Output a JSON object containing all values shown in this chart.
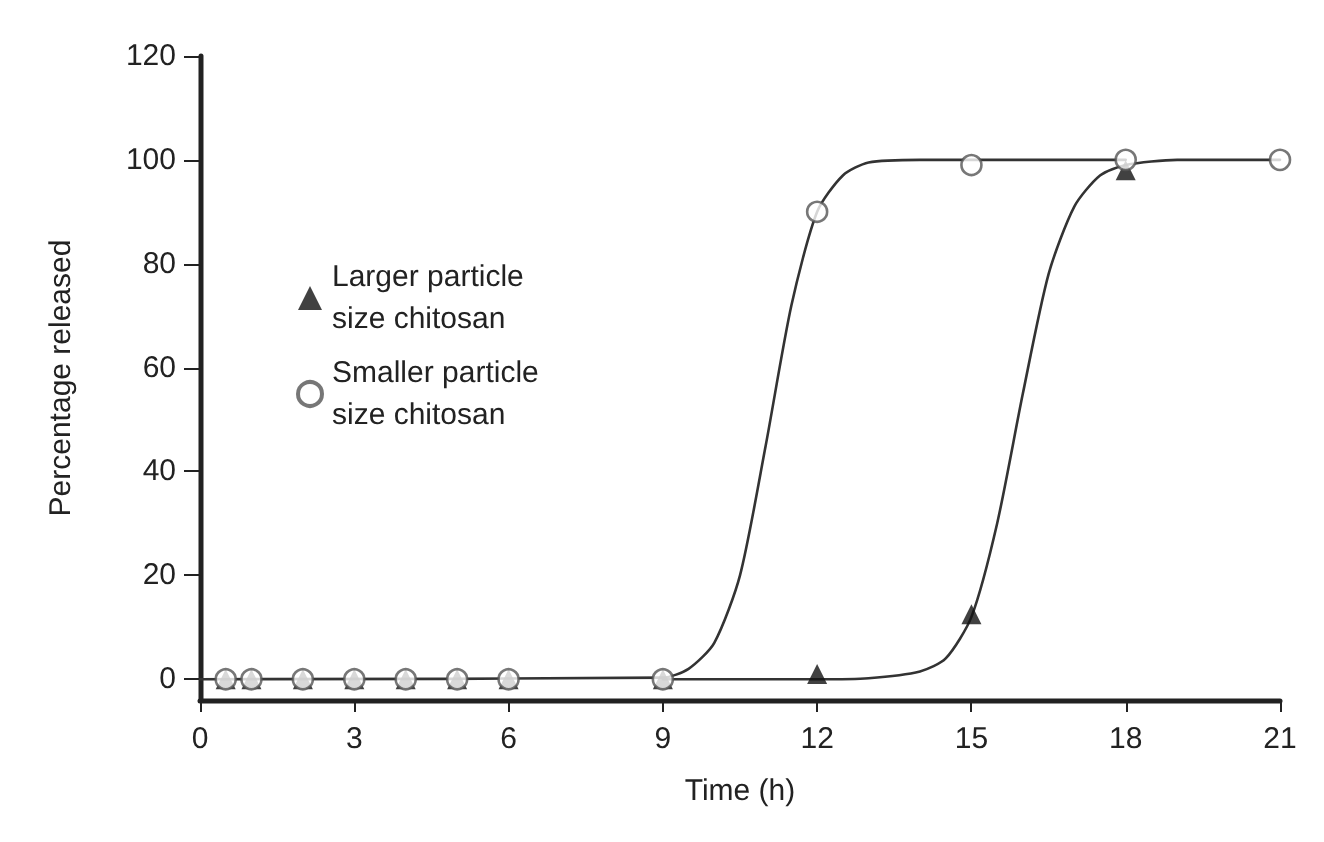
{
  "chart_data": {
    "type": "scatter",
    "xlabel": "Time (h)",
    "ylabel": "Percentage released",
    "xlim": [
      0,
      21
    ],
    "xticks": [
      0,
      3,
      6,
      9,
      12,
      15,
      18,
      21
    ],
    "ylim": [
      -4,
      120
    ],
    "yticks": [
      0,
      20,
      40,
      60,
      80,
      100,
      120
    ],
    "grid": false,
    "legend": "left",
    "series": [
      {
        "name": "Larger particle size chitosan",
        "marker": "triangle",
        "color": "#111111",
        "x": [
          0.5,
          1,
          2,
          3,
          4,
          5,
          6,
          9,
          12,
          15,
          18
        ],
        "values": [
          0,
          0,
          0,
          0,
          0,
          0,
          0,
          0,
          1,
          12.5,
          98
        ]
      },
      {
        "name": "Smaller particle size chitosan",
        "marker": "circle",
        "color": "#555555",
        "x": [
          0.5,
          1,
          2,
          3,
          4,
          5,
          6,
          9,
          12,
          15,
          18,
          21
        ],
        "values": [
          0,
          0,
          0,
          0,
          0,
          0,
          0,
          0,
          90,
          99,
          100,
          100
        ]
      },
      {
        "type": "line",
        "marker": "none",
        "color": "#333333",
        "x": [
          0,
          9,
          9.5,
          10,
          10.5,
          11,
          11.5,
          12,
          12.5,
          13,
          14,
          18
        ],
        "values": [
          0,
          0.3,
          2,
          7,
          20,
          45,
          72,
          90,
          97,
          99.5,
          100,
          100
        ]
      },
      {
        "type": "line",
        "marker": "none",
        "color": "#333333",
        "x": [
          9,
          12,
          13,
          14,
          14.5,
          15,
          15.5,
          16,
          16.5,
          17,
          17.5,
          18,
          19,
          21
        ],
        "values": [
          0,
          0,
          0.2,
          1.5,
          4,
          12,
          30,
          55,
          78,
          91,
          97,
          99,
          100,
          100
        ]
      }
    ]
  }
}
